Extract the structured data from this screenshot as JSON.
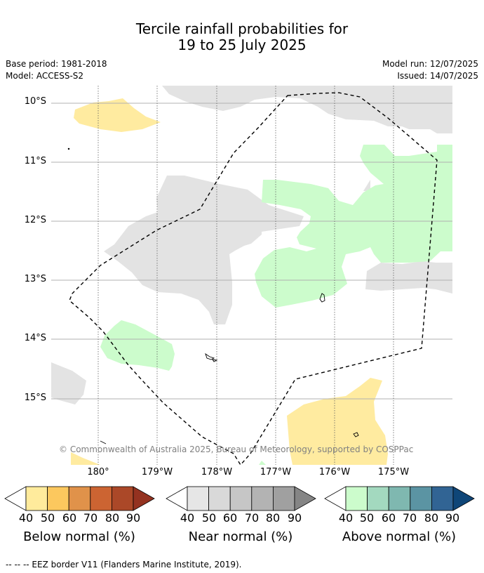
{
  "title": {
    "line1": "Tercile rainfall probabilities for",
    "line2": "19 to 25 July 2025"
  },
  "meta": {
    "base_period": "Base period: 1981-2018",
    "model": "Model: ACCESS-S2",
    "model_run": "Model run: 12/07/2025",
    "issued": "Issued: 14/07/2025"
  },
  "map": {
    "lat_labels": [
      "10°S",
      "11°S",
      "12°S",
      "13°S",
      "14°S",
      "15°S"
    ],
    "lon_labels": [
      "180°",
      "179°W",
      "178°W",
      "177°W",
      "176°W",
      "175°W"
    ],
    "copyright": "© Commonwealth of Australia 2025, Bureau of Meteorology, supported by COSPPac",
    "border_line": "dashed",
    "colors": {
      "near": "#e3e3e3",
      "above": "#ccfccc",
      "below": "#ffeba0",
      "grid": "#b0b0b0"
    }
  },
  "colorbars": [
    {
      "name": "below",
      "title": "Below normal (%)",
      "ticks": [
        "40",
        "50",
        "60",
        "70",
        "80",
        "90"
      ],
      "colors": [
        "#ffffff",
        "#ffeb9c",
        "#fcc85e",
        "#e0924a",
        "#cc6432",
        "#ab4828",
        "#943220"
      ]
    },
    {
      "name": "near",
      "title": "Near normal (%)",
      "ticks": [
        "40",
        "50",
        "60",
        "70",
        "80",
        "90"
      ],
      "colors": [
        "#ffffff",
        "#e6e6e6",
        "#d9d9d9",
        "#c6c6c6",
        "#b3b3b3",
        "#a0a0a0",
        "#858585"
      ]
    },
    {
      "name": "above",
      "title": "Above normal (%)",
      "ticks": [
        "40",
        "50",
        "60",
        "70",
        "80",
        "90"
      ],
      "colors": [
        "#ffffff",
        "#ccfccc",
        "#a3d9bf",
        "#7fb8b0",
        "#5b94a3",
        "#316494",
        "#0f4678"
      ]
    }
  ],
  "footer": "--  --  -- EEZ border V11 (Flanders Marine Institute, 2019)."
}
